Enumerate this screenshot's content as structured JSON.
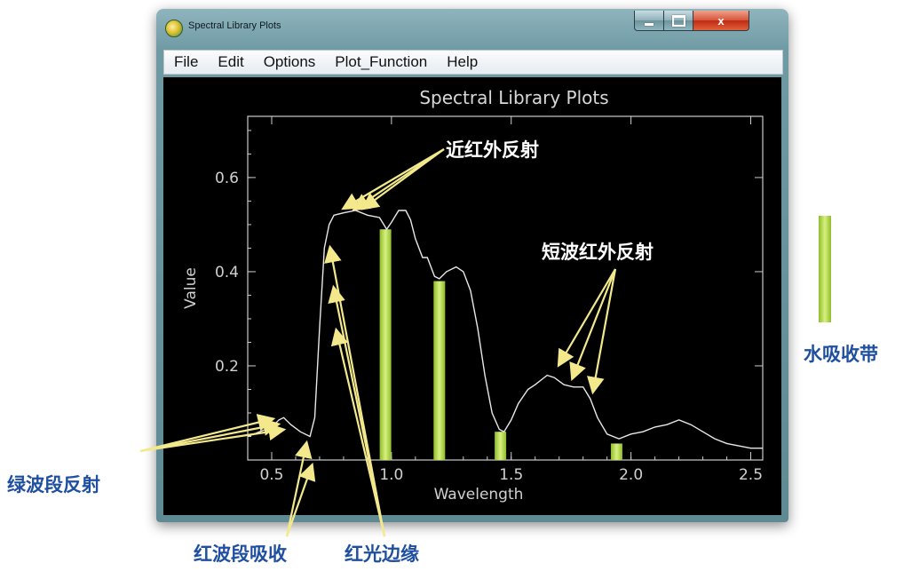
{
  "window": {
    "title": "Spectral Library Plots",
    "controls": {
      "minimize": "",
      "maximize": "",
      "close": "x"
    }
  },
  "menu": [
    "File",
    "Edit",
    "Options",
    "Plot_Function",
    "Help"
  ],
  "annotations": {
    "nir_reflection": "近红外反射",
    "swir_reflection": "短波红外反射",
    "water_band_legend": "水吸收带",
    "green_reflection": "绿波段反射",
    "red_absorption": "红波段吸收",
    "red_edge": "红光边缘"
  },
  "colors": {
    "accent_green": "#a6d64a",
    "annotation_blue": "#1f4fa0",
    "arrow_yellow": "#f3e98c",
    "curve": "#e8e8e8",
    "axes": "#cccccc"
  },
  "chart_data": {
    "type": "line",
    "title": "Spectral Library Plots",
    "xlabel": "Wavelength",
    "ylabel": "Value",
    "xlim": [
      0.4,
      2.55
    ],
    "ylim": [
      0.0,
      0.73
    ],
    "xticks": [
      "0.5",
      "1.0",
      "1.5",
      "2.0",
      "2.5"
    ],
    "yticks": [
      "0.2",
      "0.4",
      "0.6"
    ],
    "grid": false,
    "series": [
      {
        "x": [
          0.4,
          0.45,
          0.5,
          0.53,
          0.55,
          0.58,
          0.62,
          0.66,
          0.68,
          0.7,
          0.72,
          0.74,
          0.76,
          0.8,
          0.85,
          0.9,
          0.95,
          0.98,
          1.0,
          1.03,
          1.06,
          1.08,
          1.1,
          1.13,
          1.15,
          1.18,
          1.2,
          1.23,
          1.27,
          1.3,
          1.33,
          1.36,
          1.39,
          1.42,
          1.45,
          1.47,
          1.5,
          1.53,
          1.57,
          1.6,
          1.65,
          1.68,
          1.72,
          1.76,
          1.8,
          1.83,
          1.86,
          1.9,
          1.95,
          2.0,
          2.05,
          2.1,
          2.15,
          2.2,
          2.25,
          2.3,
          2.35,
          2.4,
          2.45,
          2.5,
          2.55
        ],
        "y": [
          0.05,
          0.06,
          0.07,
          0.085,
          0.09,
          0.075,
          0.06,
          0.05,
          0.09,
          0.28,
          0.45,
          0.5,
          0.52,
          0.525,
          0.53,
          0.52,
          0.515,
          0.49,
          0.505,
          0.53,
          0.53,
          0.51,
          0.47,
          0.43,
          0.43,
          0.39,
          0.385,
          0.4,
          0.41,
          0.4,
          0.36,
          0.28,
          0.18,
          0.1,
          0.065,
          0.06,
          0.085,
          0.12,
          0.15,
          0.16,
          0.18,
          0.175,
          0.16,
          0.155,
          0.155,
          0.13,
          0.09,
          0.055,
          0.045,
          0.055,
          0.06,
          0.07,
          0.075,
          0.085,
          0.075,
          0.06,
          0.045,
          0.035,
          0.03,
          0.025,
          0.025
        ]
      }
    ],
    "water_absorption_bands": [
      {
        "center": 0.975,
        "top": 0.49
      },
      {
        "center": 1.2,
        "top": 0.38
      },
      {
        "center": 1.455,
        "top": 0.06
      },
      {
        "center": 1.94,
        "top": 0.035
      }
    ]
  }
}
